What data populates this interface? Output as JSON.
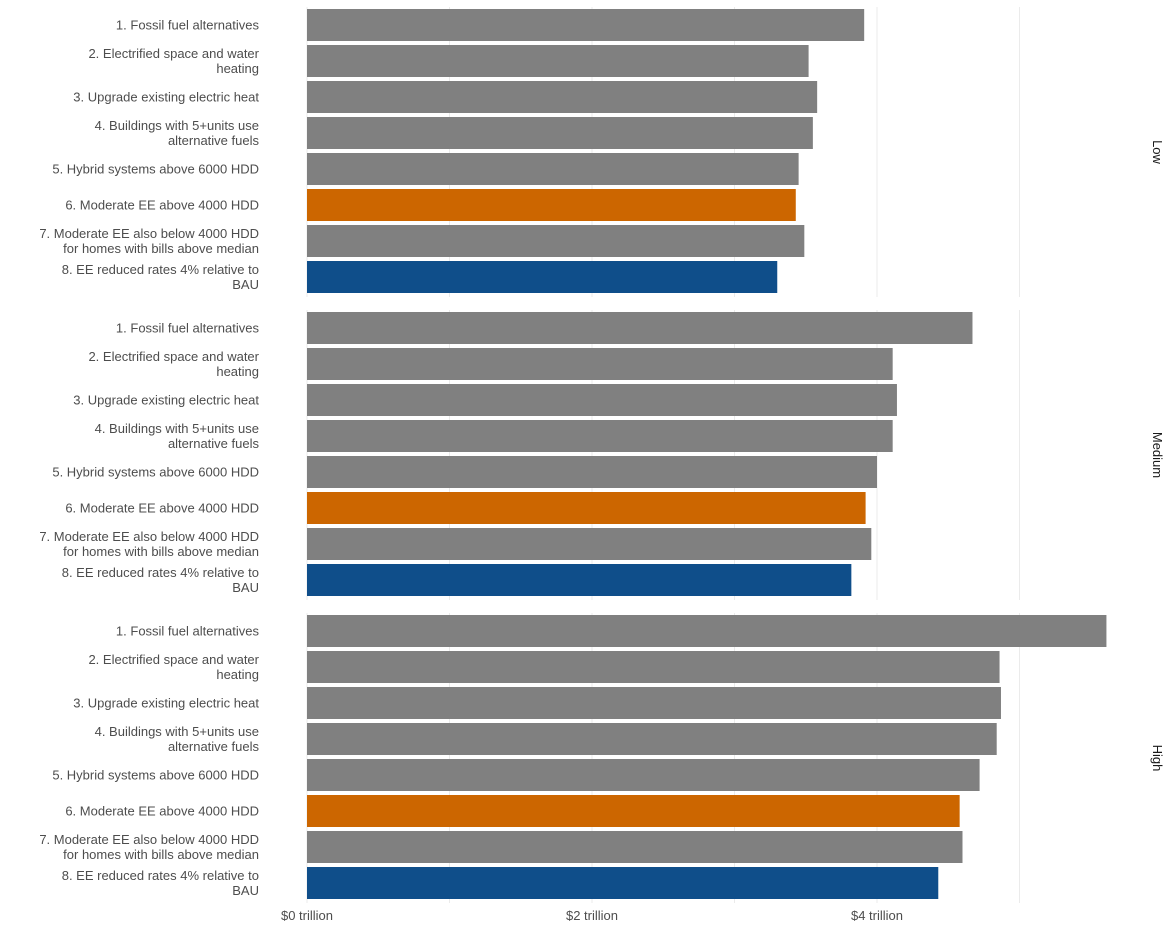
{
  "chart_data": {
    "type": "bar",
    "orientation": "horizontal",
    "facet_orientation": "rows",
    "xlabel": "",
    "ylabel": "",
    "xlim": [
      0,
      5.6
    ],
    "grid": true,
    "x_ticks": [
      {
        "value": 0,
        "label": "$0 trillion"
      },
      {
        "value": 2,
        "label": "$2 trillion"
      },
      {
        "value": 4,
        "label": "$4 trillion"
      }
    ],
    "minor_grid": [
      1,
      3,
      5
    ],
    "categories": [
      [
        "1. Fossil fuel alternatives"
      ],
      [
        "2. Electrified space and water",
        "heating"
      ],
      [
        "3. Upgrade existing electric heat"
      ],
      [
        "4. Buildings with 5+units use",
        "alternative fuels"
      ],
      [
        "5. Hybrid systems above 6000 HDD"
      ],
      [
        "6. Moderate EE above 4000 HDD"
      ],
      [
        "7. Moderate EE also below 4000 HDD",
        "for homes with bills above median"
      ],
      [
        "8. EE reduced rates 4% relative to",
        "BAU"
      ]
    ],
    "colors": {
      "default": "#808080",
      "highlight_orange": "#cc6600",
      "highlight_blue": "#0f4e8a",
      "grid": "#ebebeb"
    },
    "bar_color_keys": [
      "default",
      "default",
      "default",
      "default",
      "default",
      "highlight_orange",
      "default",
      "highlight_blue"
    ],
    "facets": [
      {
        "name": "Low",
        "values": [
          3.91,
          3.52,
          3.58,
          3.55,
          3.45,
          3.43,
          3.49,
          3.3
        ]
      },
      {
        "name": "Medium",
        "values": [
          4.67,
          4.11,
          4.14,
          4.11,
          4.0,
          3.92,
          3.96,
          3.82
        ]
      },
      {
        "name": "High",
        "values": [
          5.61,
          4.86,
          4.87,
          4.84,
          4.72,
          4.58,
          4.6,
          4.43
        ]
      }
    ]
  }
}
